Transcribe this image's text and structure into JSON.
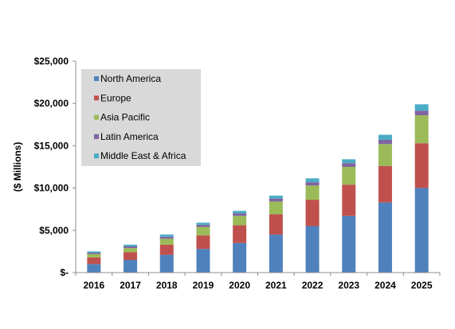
{
  "chart_data": {
    "type": "bar",
    "stacked": true,
    "title": "",
    "xlabel": "",
    "ylabel": "($ Millions)",
    "ylim": [
      0,
      25000
    ],
    "yticks": [
      0,
      5000,
      10000,
      15000,
      20000,
      25000
    ],
    "ytick_labels": [
      "$-",
      "$5,000",
      "$10,000",
      "$15,000",
      "$20,000",
      "$25,000"
    ],
    "grid": false,
    "legend_position": "top-left",
    "legend_background": "#d9d9d9",
    "categories": [
      "2016",
      "2017",
      "2018",
      "2019",
      "2020",
      "2021",
      "2022",
      "2023",
      "2024",
      "2025"
    ],
    "series": [
      {
        "name": "North America",
        "color": "#4f81bd",
        "values": [
          1000,
          1500,
          2100,
          2800,
          3500,
          4500,
          5500,
          6700,
          8300,
          10000
        ]
      },
      {
        "name": "Europe",
        "color": "#c0504d",
        "values": [
          800,
          900,
          1200,
          1600,
          2100,
          2400,
          3100,
          3700,
          4300,
          5300
        ]
      },
      {
        "name": "Asia Pacific",
        "color": "#9bbb59",
        "values": [
          400,
          500,
          700,
          1000,
          1100,
          1500,
          1700,
          2100,
          2600,
          3300
        ]
      },
      {
        "name": "Latin America",
        "color": "#8064a2",
        "values": [
          150,
          200,
          250,
          250,
          300,
          350,
          400,
          450,
          500,
          550
        ]
      },
      {
        "name": "Middle East & Africa",
        "color": "#4bacc6",
        "values": [
          150,
          200,
          250,
          250,
          300,
          350,
          450,
          450,
          600,
          750
        ]
      }
    ]
  }
}
